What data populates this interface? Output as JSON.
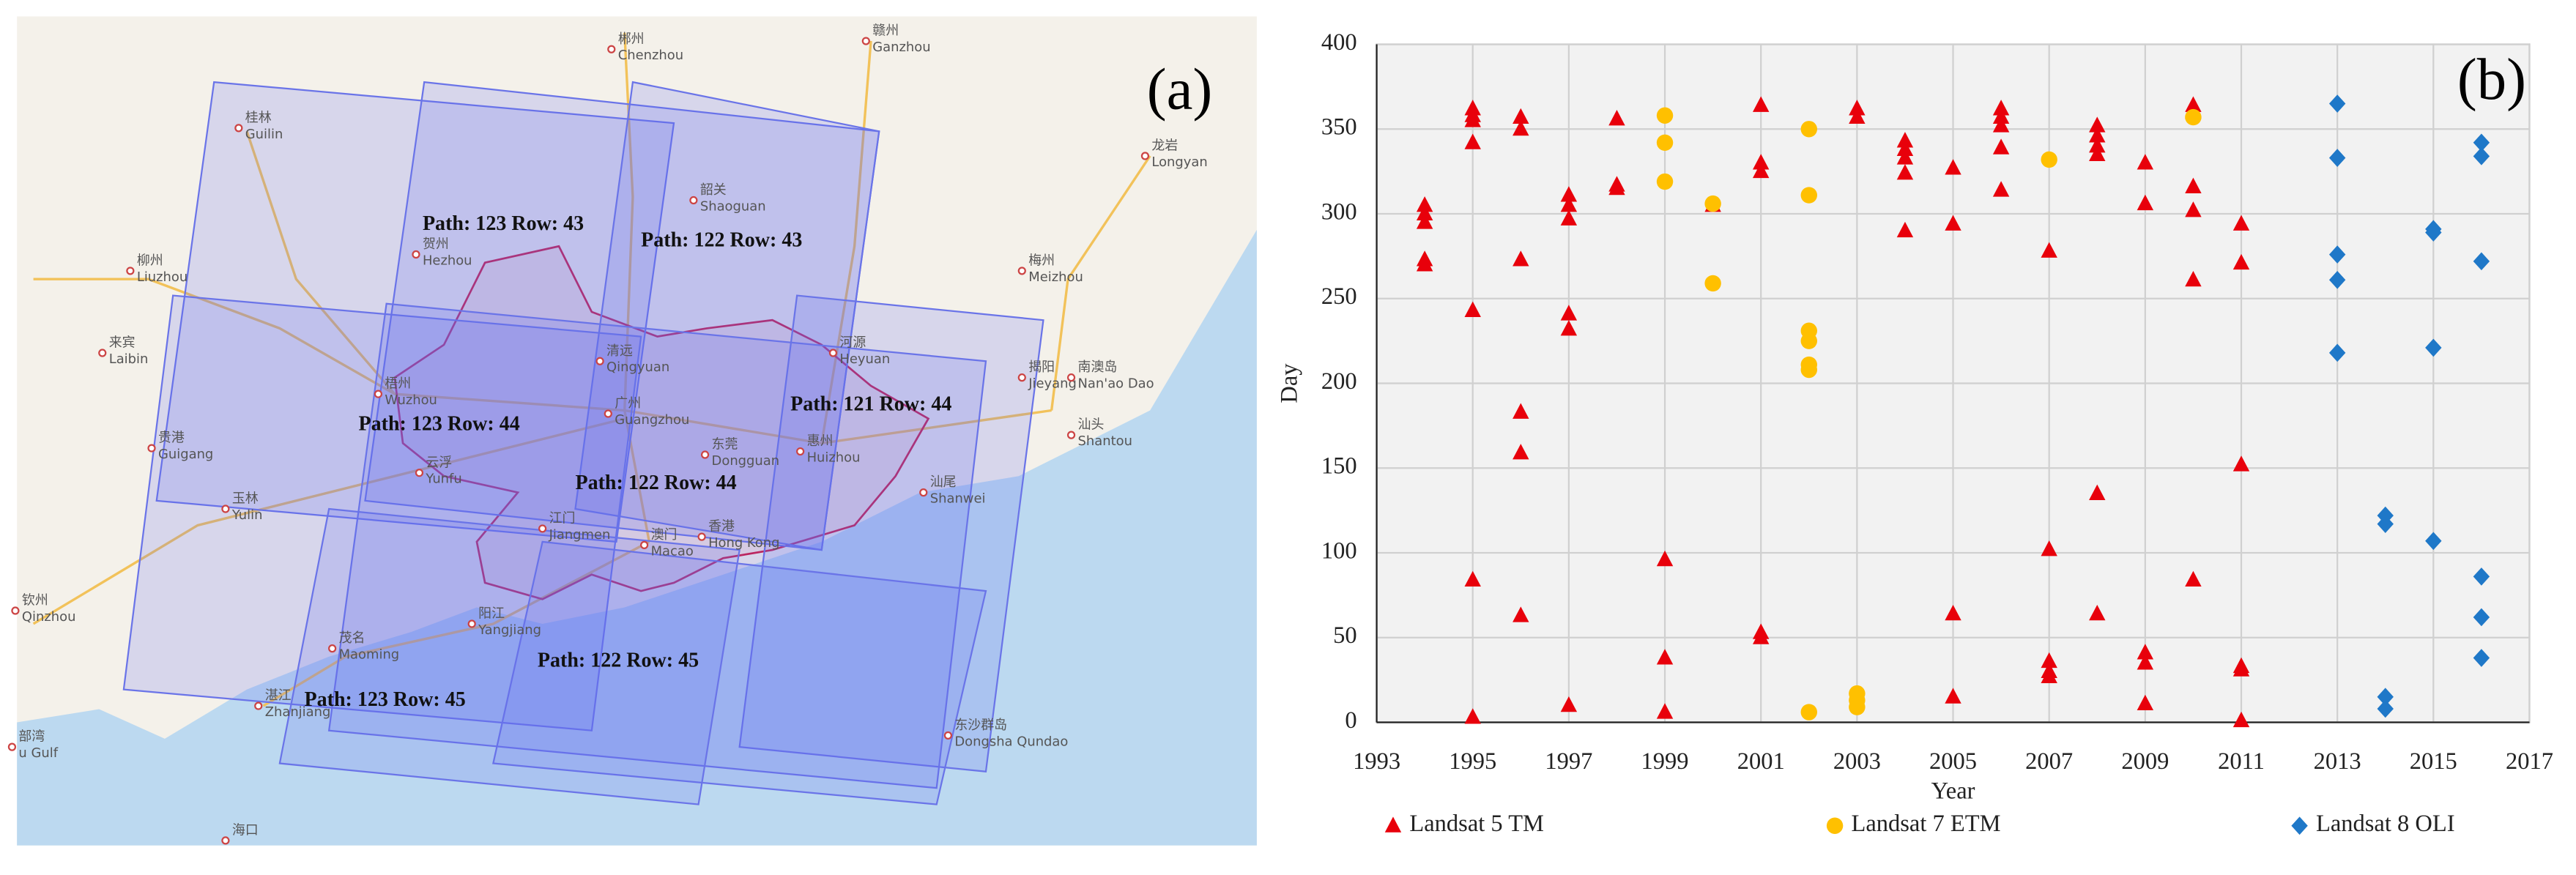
{
  "map": {
    "panel_label": "(a)",
    "scenes": [
      "Path: 123 Row: 43",
      "Path: 122 Row: 43",
      "Path: 121 Row: 44",
      "Path: 123 Row: 44",
      "Path: 122 Row: 44",
      "Path: 122 Row: 45",
      "Path: 123 Row: 45"
    ],
    "places": [
      {
        "zh": "郴州",
        "en": "Chenzhou"
      },
      {
        "zh": "赣州",
        "en": "Ganzhou"
      },
      {
        "zh": "桂林",
        "en": "Guilin"
      },
      {
        "zh": "龙岩",
        "en": "Longyan"
      },
      {
        "zh": "韶关",
        "en": "Shaoguan"
      },
      {
        "zh": "贺州",
        "en": "Hezhou"
      },
      {
        "zh": "柳州",
        "en": "Liuzhou"
      },
      {
        "zh": "梅州",
        "en": "Meizhou"
      },
      {
        "zh": "来宾",
        "en": "Laibin"
      },
      {
        "zh": "清远",
        "en": "Qingyuan"
      },
      {
        "zh": "河源",
        "en": "Heyuan"
      },
      {
        "zh": "揭阳",
        "en": "Jieyang"
      },
      {
        "zh": "梧州",
        "en": "Wuzhou"
      },
      {
        "zh": "广州",
        "en": "Guangzhou"
      },
      {
        "zh": "南澳岛",
        "en": "Nan'ao Dao"
      },
      {
        "zh": "贵港",
        "en": "Guigang"
      },
      {
        "zh": "东莞",
        "en": "Dongguan"
      },
      {
        "zh": "惠州",
        "en": "Huizhou"
      },
      {
        "zh": "汕头",
        "en": "Shantou"
      },
      {
        "zh": "云浮",
        "en": "Yunfu"
      },
      {
        "zh": "汕尾",
        "en": "Shanwei"
      },
      {
        "zh": "玉林",
        "en": "Yulin"
      },
      {
        "zh": "江门",
        "en": "Jiangmen"
      },
      {
        "zh": "澳门",
        "en": "Macao"
      },
      {
        "zh": "香港",
        "en": "Hong Kong"
      },
      {
        "zh": "钦州",
        "en": "Qinzhou"
      },
      {
        "zh": "茂名",
        "en": "Maoming"
      },
      {
        "zh": "阳江",
        "en": "Yangjiang"
      },
      {
        "zh": "湛江",
        "en": "Zhanjiang"
      },
      {
        "zh": "东沙群岛",
        "en": "Dongsha Qundao"
      },
      {
        "zh": "部湾",
        "en": "u Gulf"
      },
      {
        "zh": "海口",
        "en": ""
      }
    ]
  },
  "chart_data": {
    "type": "scatter",
    "panel_label": "(b)",
    "xlabel": "Year",
    "ylabel": "Day",
    "xlim": [
      1993,
      2017
    ],
    "xticks": [
      1993,
      1995,
      1997,
      1999,
      2001,
      2003,
      2005,
      2007,
      2009,
      2011,
      2013,
      2015,
      2017
    ],
    "ylim": [
      0,
      400
    ],
    "yticks": [
      0,
      50,
      100,
      150,
      200,
      250,
      300,
      350,
      400
    ],
    "grid": true,
    "legend": "bottom",
    "series": [
      {
        "name": "Landsat 5 TM",
        "color": "#e8000b",
        "marker": "triangle",
        "x": [
          1994,
          1994,
          1994,
          1994,
          1994,
          1995,
          1995,
          1995,
          1995,
          1995,
          1995,
          1995,
          1996,
          1996,
          1996,
          1996,
          1996,
          1996,
          1997,
          1997,
          1997,
          1997,
          1997,
          1997,
          1998,
          1998,
          1998,
          1999,
          1999,
          1999,
          2000,
          2001,
          2001,
          2001,
          2001,
          2001,
          2003,
          2003,
          2004,
          2004,
          2004,
          2004,
          2004,
          2005,
          2005,
          2005,
          2005,
          2006,
          2006,
          2006,
          2006,
          2006,
          2007,
          2007,
          2007,
          2007,
          2007,
          2008,
          2008,
          2008,
          2008,
          2008,
          2008,
          2009,
          2009,
          2009,
          2009,
          2009,
          2010,
          2010,
          2010,
          2010,
          2010,
          2010,
          2011,
          2011,
          2011,
          2011,
          2011,
          2011
        ],
        "values": [
          305,
          300,
          295,
          273,
          270,
          362,
          358,
          355,
          342,
          243,
          84,
          3,
          357,
          350,
          273,
          183,
          159,
          63,
          311,
          305,
          297,
          241,
          232,
          10,
          356,
          317,
          315,
          96,
          38,
          6,
          305,
          364,
          330,
          325,
          53,
          50,
          362,
          357,
          343,
          338,
          333,
          324,
          290,
          327,
          294,
          64,
          15,
          362,
          357,
          352,
          339,
          314,
          278,
          102,
          36,
          30,
          27,
          352,
          346,
          340,
          335,
          135,
          64,
          330,
          306,
          41,
          35,
          11,
          364,
          360,
          316,
          302,
          261,
          84,
          294,
          271,
          152,
          33,
          31,
          1
        ]
      },
      {
        "name": "Landsat 7 ETM",
        "color": "#ffc000",
        "marker": "circle",
        "x": [
          1999,
          1999,
          1999,
          2000,
          2000,
          2002,
          2002,
          2002,
          2002,
          2002,
          2002,
          2002,
          2003,
          2003,
          2003,
          2007,
          2010
        ],
        "values": [
          358,
          342,
          319,
          306,
          259,
          350,
          311,
          231,
          225,
          211,
          208,
          6,
          17,
          13,
          9,
          332,
          357
        ]
      },
      {
        "name": "Landsat 8 OLI",
        "color": "#1f78c8",
        "marker": "diamond",
        "x": [
          2013,
          2013,
          2013,
          2013,
          2013,
          2014,
          2014,
          2014,
          2014,
          2015,
          2015,
          2015,
          2015,
          2016,
          2016,
          2016,
          2016,
          2016,
          2016
        ],
        "values": [
          365,
          333,
          276,
          261,
          218,
          122,
          117,
          15,
          8,
          291,
          289,
          221,
          107,
          342,
          334,
          272,
          86,
          62,
          38
        ]
      }
    ]
  }
}
